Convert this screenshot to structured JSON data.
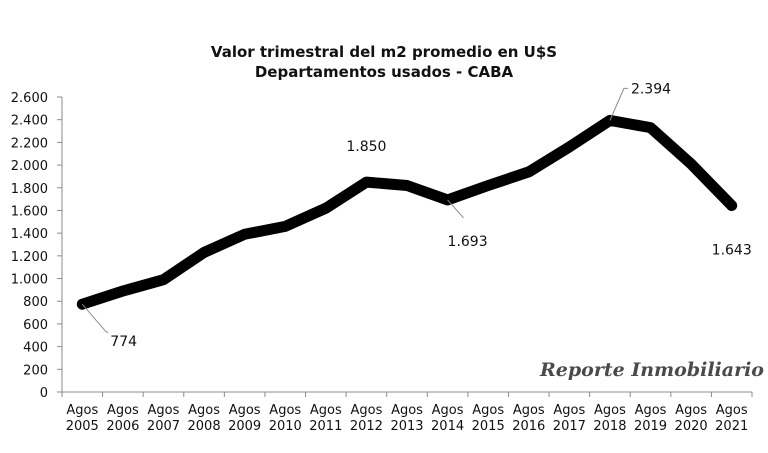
{
  "chart_data": {
    "type": "line",
    "title_line1": "Valor trimestral del m2 promedio en U$S",
    "title_line2": "Departamentos usados - CABA",
    "categories": [
      [
        "Agos",
        "2005"
      ],
      [
        "Agos",
        "2006"
      ],
      [
        "Agos",
        "2007"
      ],
      [
        "Agos",
        "2008"
      ],
      [
        "Agos",
        "2009"
      ],
      [
        "Agos",
        "2010"
      ],
      [
        "Agos",
        "2011"
      ],
      [
        "Agos",
        "2012"
      ],
      [
        "Agos",
        "2013"
      ],
      [
        "Agos",
        "2014"
      ],
      [
        "Agos",
        "2015"
      ],
      [
        "Agos",
        "2016"
      ],
      [
        "Agos",
        "2017"
      ],
      [
        "Agos",
        "2018"
      ],
      [
        "Agos",
        "2019"
      ],
      [
        "Agos",
        "2020"
      ],
      [
        "Agos",
        "2021"
      ]
    ],
    "values": [
      774,
      890,
      990,
      1230,
      1390,
      1460,
      1620,
      1850,
      1820,
      1693,
      1820,
      1940,
      2160,
      2394,
      2330,
      2010,
      1643
    ],
    "ylim": [
      0,
      2600
    ],
    "yticks": [
      0,
      200,
      400,
      600,
      800,
      1000,
      1200,
      1400,
      1600,
      1800,
      2000,
      2200,
      2400,
      2600
    ],
    "ytick_labels": [
      "0",
      "200",
      "400",
      "600",
      "800",
      "1.000",
      "1.200",
      "1.400",
      "1.600",
      "1.800",
      "2.000",
      "2.200",
      "2.400",
      "2.600"
    ],
    "annotations": [
      {
        "index": 0,
        "label": "774"
      },
      {
        "index": 7,
        "label": "1.850"
      },
      {
        "index": 9,
        "label": "1.693"
      },
      {
        "index": 13,
        "label": "2.394"
      },
      {
        "index": 16,
        "label": "1.643"
      }
    ],
    "line_color": "#000000",
    "grid": false,
    "legend": "none",
    "watermark": "Reporte Inmobiliario"
  }
}
